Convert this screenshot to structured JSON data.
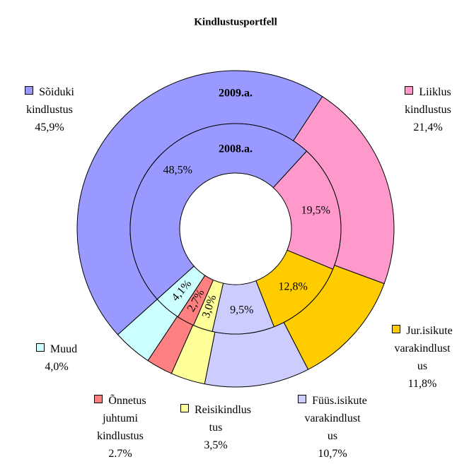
{
  "chart_data": {
    "type": "doughnut",
    "title": "Kindlustusportfell",
    "categories": [
      "Sõiduki\nkindlustus",
      "Liiklus\nkindlustus",
      "Jur.isikute\nvarakindlust\nus",
      "Füüs.isikute\nvarakindlust\nus",
      "Reisikindlus\ntus",
      "Õnnetus\njuhtumi\nkindlustus",
      "Muud"
    ],
    "colors": [
      "#9999ff",
      "#ff99cc",
      "#ffcc00",
      "#ccccff",
      "#ffff99",
      "#ff8080",
      "#ccffff"
    ],
    "series": [
      {
        "name": "2009.a.",
        "values": [
          45.9,
          21.4,
          11.8,
          10.7,
          3.5,
          2.7,
          4.0
        ],
        "value_labels": [
          "45,9%",
          "21,4%",
          "11,8%",
          "10,7%",
          "3,5%",
          "2.7%",
          "4,0%"
        ]
      },
      {
        "name": "2008.a.",
        "values": [
          48.5,
          19.5,
          12.8,
          9.5,
          3.0,
          2.7,
          4.1
        ],
        "value_labels": [
          "48,5%",
          "19,5%",
          "12,8%",
          "9,5%",
          "3,0%",
          "2,7%",
          "4,1%"
        ]
      }
    ]
  }
}
